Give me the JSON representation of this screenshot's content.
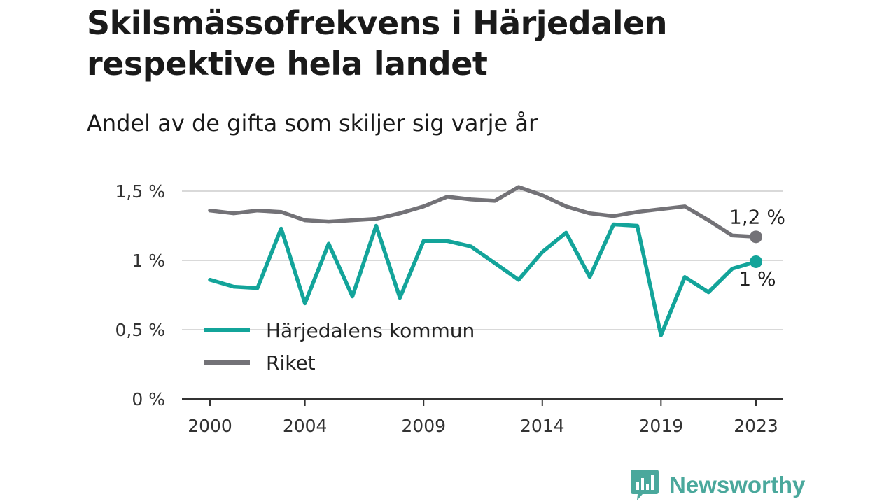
{
  "header": {
    "title": "Skilsmässofrekvens i Härjedalen respektive hela landet",
    "subtitle": "Andel av de gifta som skiljer sig varje år"
  },
  "colors": {
    "harjedalen": "#13a49a",
    "riket": "#737277",
    "grid": "#d9d9d9",
    "axis": "#333333"
  },
  "chart_data": {
    "type": "line",
    "title": "Skilsmässofrekvens i Härjedalen respektive hela landet",
    "subtitle": "Andel av de gifta som skiljer sig varje år",
    "xlabel": "",
    "ylabel": "",
    "x": [
      2000,
      2001,
      2002,
      2003,
      2004,
      2005,
      2006,
      2007,
      2008,
      2009,
      2010,
      2011,
      2012,
      2013,
      2014,
      2015,
      2016,
      2017,
      2018,
      2019,
      2020,
      2021,
      2022,
      2023
    ],
    "x_tick_labels": [
      "2000",
      "2004",
      "2009",
      "2014",
      "2019",
      "2023"
    ],
    "x_tick_values": [
      2000,
      2004,
      2009,
      2014,
      2019,
      2023
    ],
    "y_tick_labels": [
      "0 %",
      "0,5 %",
      "1 %",
      "1,5 %"
    ],
    "y_tick_values": [
      0,
      0.5,
      1.0,
      1.5
    ],
    "ylim": [
      0,
      1.5
    ],
    "grid": true,
    "legend_position": "bottom-left",
    "series": [
      {
        "name": "Härjedalens kommun",
        "values": [
          0.86,
          0.81,
          0.8,
          1.23,
          0.69,
          1.12,
          0.74,
          1.25,
          0.73,
          1.14,
          1.14,
          1.1,
          0.98,
          0.86,
          1.06,
          1.2,
          0.88,
          1.26,
          1.25,
          0.46,
          0.88,
          0.77,
          0.94,
          0.99
        ],
        "end_label": "1 %"
      },
      {
        "name": "Riket",
        "values": [
          1.36,
          1.34,
          1.36,
          1.35,
          1.29,
          1.28,
          1.29,
          1.3,
          1.34,
          1.39,
          1.46,
          1.44,
          1.43,
          1.53,
          1.47,
          1.39,
          1.34,
          1.32,
          1.35,
          1.37,
          1.39,
          1.29,
          1.18,
          1.17
        ],
        "end_label": "1,2 %"
      }
    ]
  },
  "logo": {
    "text": "Newsworthy",
    "icon": "newsworthy-chat-bars-icon"
  }
}
